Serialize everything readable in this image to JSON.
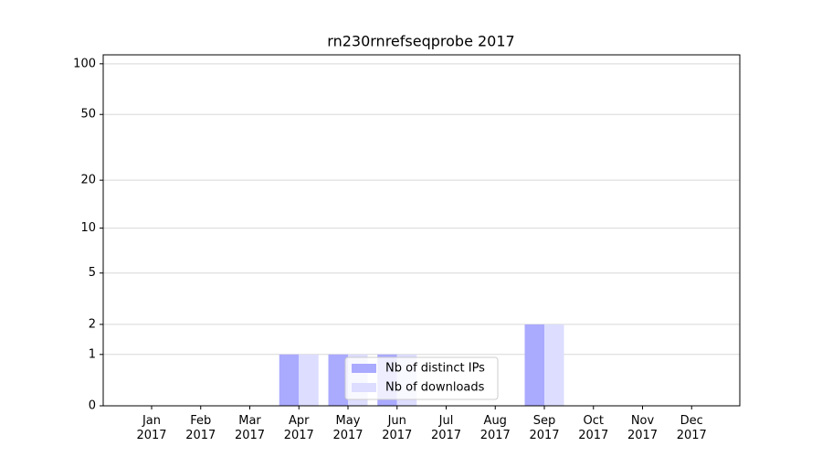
{
  "chart_data": {
    "type": "bar",
    "title": "rn230rnrefseqprobe 2017",
    "categories": [
      "Jan\n2017",
      "Feb\n2017",
      "Mar\n2017",
      "Apr\n2017",
      "May\n2017",
      "Jun\n2017",
      "Jul\n2017",
      "Aug\n2017",
      "Sep\n2017",
      "Oct\n2017",
      "Nov\n2017",
      "Dec\n2017"
    ],
    "series": [
      {
        "name": "Nb of distinct IPs",
        "color": "#aaaaff",
        "values": [
          0,
          0,
          0,
          1,
          1,
          1,
          0,
          0,
          2,
          0,
          0,
          0
        ]
      },
      {
        "name": "Nb of downloads",
        "color": "#ddddff",
        "values": [
          0,
          0,
          0,
          1,
          1,
          1,
          0,
          0,
          2,
          0,
          0,
          0
        ]
      }
    ],
    "yscale": "log1p",
    "ylim": [
      0,
      113
    ],
    "yticks": [
      0,
      1,
      2,
      5,
      10,
      20,
      50,
      100
    ],
    "grid": true,
    "legend": "lower center"
  }
}
